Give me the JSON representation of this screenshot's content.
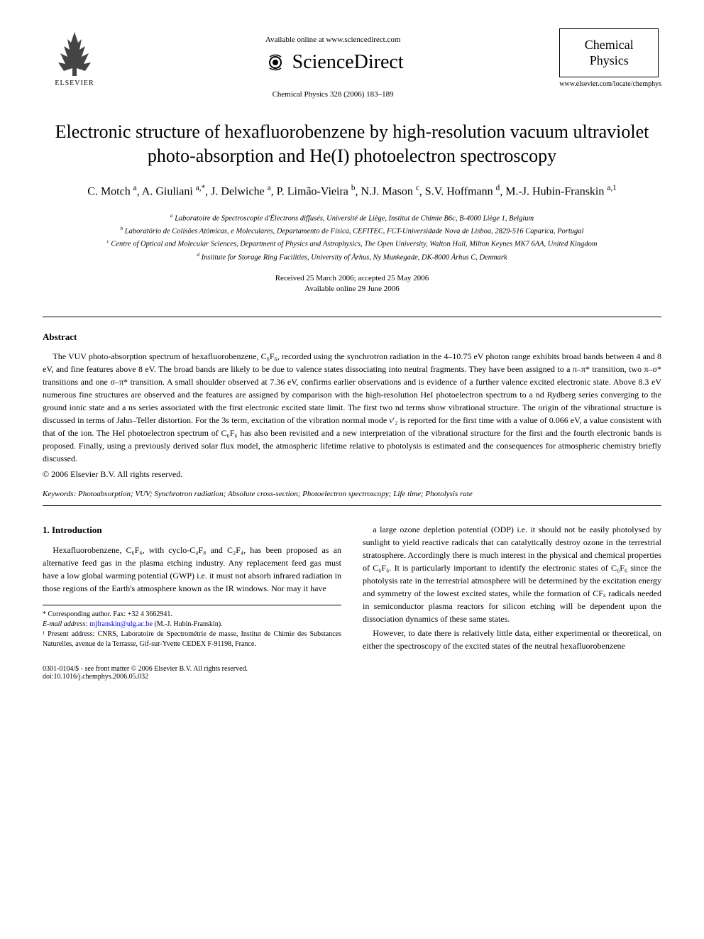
{
  "header": {
    "available_online": "Available online at www.sciencedirect.com",
    "sciencedirect_label": "ScienceDirect",
    "elsevier_label": "ELSEVIER",
    "journal_ref": "Chemical Physics 328 (2006) 183–189",
    "journal_box_line1": "Chemical",
    "journal_box_line2": "Physics",
    "journal_url": "www.elsevier.com/locate/chemphys"
  },
  "title": "Electronic structure of hexafluorobenzene by high-resolution vacuum ultraviolet photo-absorption and He(I) photoelectron spectroscopy",
  "authors_html": "C. Motch <sup>a</sup>, A. Giuliani <sup>a,*</sup>, J. Delwiche <sup>a</sup>, P. Limão-Vieira <sup>b</sup>, N.J. Mason <sup>c</sup>, S.V. Hoffmann <sup>d</sup>, M.-J. Hubin-Franskin <sup>a,1</sup>",
  "affiliations": {
    "a": "Laboratoire de Spectroscopie d'Électrons diffusés, Université de Liège, Institut de Chimie B6c, B-4000 Liège 1, Belgium",
    "b": "Laboratório de Colisões Atómicas, e Moleculares, Departamento de Física, CEFITEC, FCT-Universidade Nova de Lisboa, 2829-516 Caparica, Portugal",
    "c": "Centre of Optical and Molecular Sciences, Department of Physics and Astrophysics, The Open University, Walton Hall, Milton Keynes MK7 6AA, United Kingdom",
    "d": "Institute for Storage Ring Facilities, University of Århus, Ny Munkegade, DK-8000 Århus C, Denmark"
  },
  "dates": {
    "received": "Received 25 March 2006; accepted 25 May 2006",
    "online": "Available online 29 June 2006"
  },
  "abstract": {
    "heading": "Abstract",
    "body": "The VUV photo-absorption spectrum of hexafluorobenzene, C₆F₆, recorded using the synchrotron radiation in the 4–10.75 eV photon range exhibits broad bands between 4 and 8 eV, and fine features above 8 eV. The broad bands are likely to be due to valence states dissociating into neutral fragments. They have been assigned to a π–π* transition, two π–σ* transitions and one σ–π* transition. A small shoulder observed at 7.36 eV, confirms earlier observations and is evidence of a further valence excited electronic state. Above 8.3 eV numerous fine structures are observed and the features are assigned by comparison with the high-resolution HeI photoelectron spectrum to a nd Rydberg series converging to the ground ionic state and a ns series associated with the first electronic excited state limit. The first two nd terms show vibrational structure. The origin of the vibrational structure is discussed in terms of Jahn–Teller distortion. For the 3s term, excitation of the vibration normal mode ν′₂ is reported for the first time with a value of 0.066 eV, a value consistent with that of the ion. The HeI photoelectron spectrum of C₆F₆ has also been revisited and a new interpretation of the vibrational structure for the first and the fourth electronic bands is proposed. Finally, using a previously derived solar flux model, the atmospheric lifetime relative to photolysis is estimated and the consequences for atmospheric chemistry briefly discussed.",
    "copyright": "© 2006 Elsevier B.V. All rights reserved."
  },
  "keywords": {
    "label": "Keywords:",
    "text": "Photoabsorption; VUV; Synchrotron radiation; Absolute cross-section; Photoelectron spectroscopy; Life time; Photolysis rate"
  },
  "intro": {
    "heading": "1. Introduction",
    "col1_p1": "Hexafluorobenzene, C₆F₆, with cyclo-C₄F₈ and C₂F₄, has been proposed as an alternative feed gas in the plasma etching industry. Any replacement feed gas must have a low global warming potential (GWP) i.e. it must not absorb infrared radiation in those regions of the Earth's atmosphere known as the IR windows. Nor may it have",
    "col2_p1": "a large ozone depletion potential (ODP) i.e. it should not be easily photolysed by sunlight to yield reactive radicals that can catalytically destroy ozone in the terrestrial stratosphere. Accordingly there is much interest in the physical and chemical properties of C₆F₆. It is particularly important to identify the electronic states of C₆F₆ since the photolysis rate in the terrestrial atmosphere will be determined by the excitation energy and symmetry of the lowest excited states, while the formation of CFₓ radicals needed in semiconductor plasma reactors for silicon etching will be dependent upon the dissociation dynamics of these same states.",
    "col2_p2": "However, to date there is relatively little data, either experimental or theoretical, on either the spectroscopy of the excited states of the neutral hexafluorobenzene"
  },
  "footnotes": {
    "corresponding": "* Corresponding author. Fax: +32 4 3662941.",
    "email_label": "E-mail address:",
    "email": "mjfranskin@ulg.ac.be",
    "email_attribution": "(M.-J. Hubin-Franskin).",
    "present": "¹ Present address: CNRS, Laboratoire de Spectrométrie de masse, Institut de Chimie des Substances Naturelles, avenue de la Terrasse, Gif-sur-Yvette CEDEX F-91198, France."
  },
  "bottom": {
    "issn": "0301-0104/$ - see front matter © 2006 Elsevier B.V. All rights reserved.",
    "doi": "doi:10.1016/j.chemphys.2006.05.032"
  },
  "colors": {
    "text": "#000000",
    "background": "#ffffff",
    "link": "#0000ee",
    "border": "#000000"
  },
  "typography": {
    "title_fontsize": 26,
    "authors_fontsize": 16,
    "body_fontsize": 12,
    "affil_fontsize": 10.5,
    "footnote_fontsize": 10,
    "font_family": "Georgia, Times New Roman, serif"
  }
}
